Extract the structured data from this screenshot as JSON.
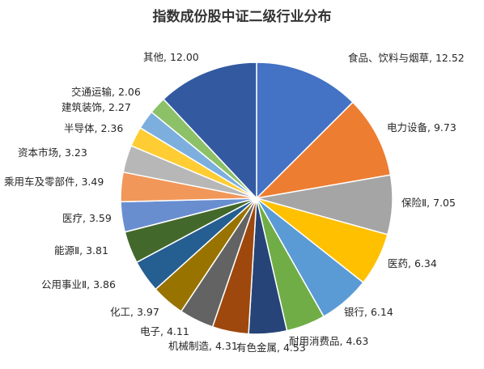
{
  "chart_data": {
    "type": "pie",
    "title": "指数成份股中证二级行业分布",
    "labels": [
      "食品、饮料与烟草",
      "电力设备",
      "保险Ⅱ",
      "医药",
      "银行",
      "耐用消费品",
      "有色金属",
      "机械制造",
      "电子",
      "化工",
      "公用事业Ⅱ",
      "能源Ⅱ",
      "医疗",
      "乘用车及零部件",
      "资本市场",
      "半导体",
      "建筑装饰",
      "交通运输",
      "其他"
    ],
    "values": [
      12.52,
      9.73,
      7.05,
      6.34,
      6.14,
      4.63,
      4.53,
      4.31,
      4.11,
      3.97,
      3.86,
      3.81,
      3.59,
      3.49,
      3.23,
      2.36,
      2.27,
      2.06,
      12.0
    ],
    "value_labels": [
      "12.52",
      "9.73",
      "7.05",
      "6.34",
      "6.14",
      "4.63",
      "4.53",
      "4.31",
      "4.11",
      "3.97",
      "3.86",
      "3.81",
      "3.59",
      "3.49",
      "3.23",
      "2.36",
      "2.27",
      "2.06",
      "12.00"
    ],
    "colors": [
      "#4472C4",
      "#ED7D31",
      "#A5A5A5",
      "#FFC000",
      "#5B9BD5",
      "#70AD47",
      "#264478",
      "#9E480E",
      "#636363",
      "#997300",
      "#255E91",
      "#43682B",
      "#698ED0",
      "#F1975A",
      "#B7B7B7",
      "#FFCD33",
      "#7CAFDD",
      "#8CC168",
      "#335AA1"
    ],
    "legend": "none"
  }
}
